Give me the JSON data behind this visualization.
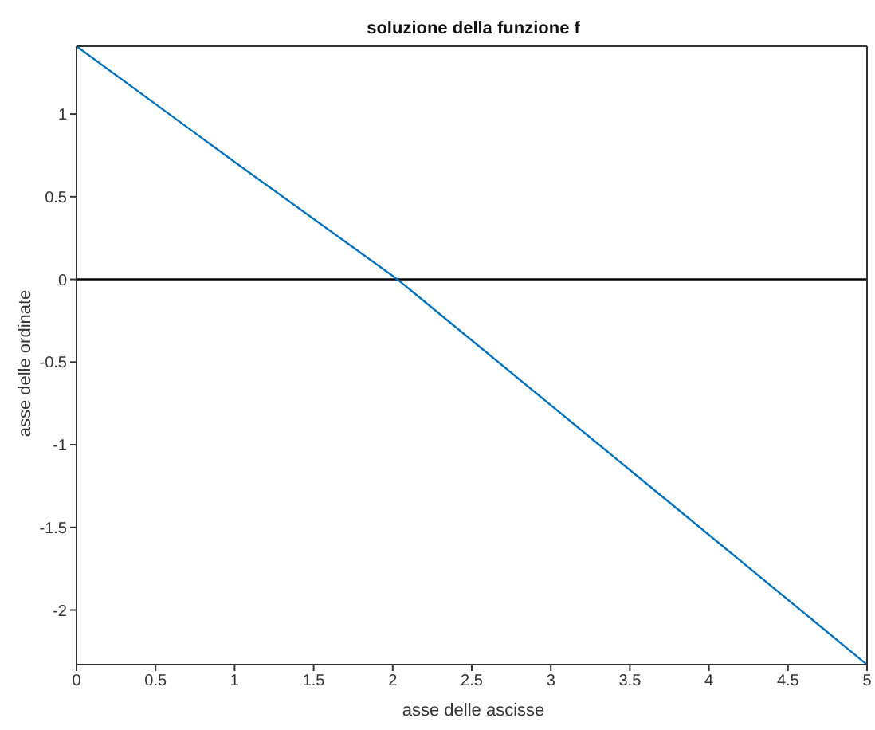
{
  "chart_data": {
    "type": "line",
    "title": "soluzione della funzione f",
    "xlabel": "asse delle ascisse",
    "ylabel": "asse delle ordinate",
    "x": [
      0,
      1,
      2.03,
      3.56,
      5
    ],
    "series": [
      {
        "color": "#0072bd",
        "values": [
          1.41,
          0.71,
          0,
          -1.2,
          -2.33
        ]
      }
    ],
    "xlim": [
      0,
      5
    ],
    "xticks": [
      0,
      0.5,
      1,
      1.5,
      2,
      2.5,
      3,
      3.5,
      4,
      4.5,
      5
    ],
    "ylim": [
      -2.33,
      1.41
    ],
    "yticks": [
      -2,
      -1.5,
      -1,
      -0.5,
      0,
      0.5,
      1
    ],
    "ref_lines": [
      {
        "axis": "y",
        "value": 0,
        "color": "#000000"
      }
    ],
    "grid": false,
    "legend": false,
    "marker": "none",
    "line_style": "solid"
  }
}
